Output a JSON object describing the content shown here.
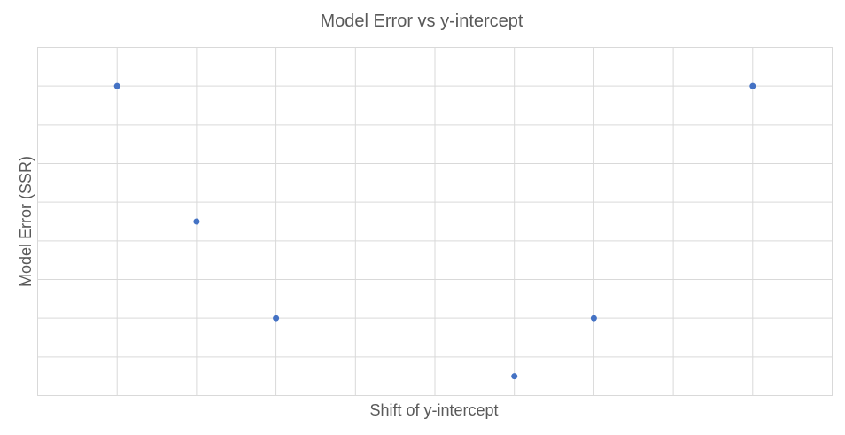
{
  "chart_data": {
    "type": "scatter",
    "title": "Model Error vs y-intercept",
    "xlabel": "Shift of y-intercept",
    "ylabel": "Model Error (SSR)",
    "xlim": [
      0,
      10
    ],
    "ylim": [
      0,
      9
    ],
    "x_grid_step": 1,
    "y_grid_step": 1,
    "grid": true,
    "axis_tick_labels_visible": false,
    "legend": "none",
    "colors": {
      "point": "#4472c4",
      "grid": "#d9d9d9",
      "text": "#595959"
    },
    "series": [
      {
        "points": [
          {
            "x": 1,
            "y": 8
          },
          {
            "x": 2,
            "y": 4.5
          },
          {
            "x": 3,
            "y": 2
          },
          {
            "x": 6,
            "y": 0.5
          },
          {
            "x": 7,
            "y": 2
          },
          {
            "x": 9,
            "y": 8
          }
        ]
      }
    ]
  }
}
